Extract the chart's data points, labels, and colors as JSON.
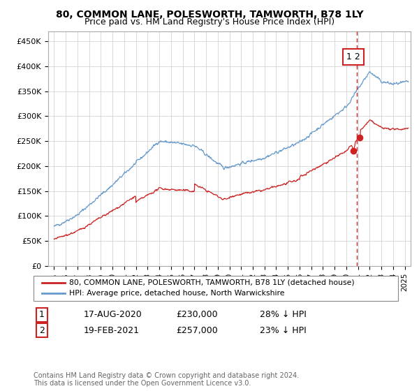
{
  "title": "80, COMMON LANE, POLESWORTH, TAMWORTH, B78 1LY",
  "subtitle": "Price paid vs. HM Land Registry's House Price Index (HPI)",
  "ylabel_ticks": [
    "£0",
    "£50K",
    "£100K",
    "£150K",
    "£200K",
    "£250K",
    "£300K",
    "£350K",
    "£400K",
    "£450K"
  ],
  "ytick_vals": [
    0,
    50000,
    100000,
    150000,
    200000,
    250000,
    300000,
    350000,
    400000,
    450000
  ],
  "ylim": [
    0,
    470000
  ],
  "xlim_start": 1994.5,
  "xlim_end": 2025.5,
  "hpi_color": "#6699cc",
  "price_color": "#cc2222",
  "annotation_color": "#cc2222",
  "sale1_x": 2020.62,
  "sale1_y": 230000,
  "sale2_x": 2021.12,
  "sale2_y": 257000,
  "vline_x": 2020.9,
  "footnote": "Contains HM Land Registry data © Crown copyright and database right 2024.\nThis data is licensed under the Open Government Licence v3.0.",
  "legend_line1": "80, COMMON LANE, POLESWORTH, TAMWORTH, B78 1LY (detached house)",
  "legend_line2": "HPI: Average price, detached house, North Warwickshire",
  "table_row1": [
    "1",
    "17-AUG-2020",
    "£230,000",
    "28% ↓ HPI"
  ],
  "table_row2": [
    "2",
    "19-FEB-2021",
    "£257,000",
    "23% ↓ HPI"
  ]
}
